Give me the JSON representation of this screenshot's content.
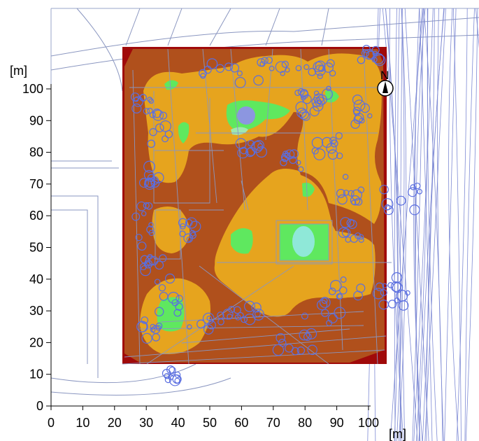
{
  "map": {
    "x_axis": {
      "unit": "[m]",
      "ticks": [
        "0",
        "10",
        "20",
        "30",
        "40",
        "50",
        "60",
        "70",
        "80",
        "90",
        "100"
      ]
    },
    "y_axis": {
      "unit": "[m]",
      "ticks": [
        "0",
        "10",
        "20",
        "30",
        "40",
        "50",
        "60",
        "70",
        "80",
        "90",
        "100"
      ]
    },
    "north_label": "N",
    "colors": {
      "dark_red": "#a00a0a",
      "brown": "#b0501c",
      "orange": "#e6a41e",
      "green": "#5fe85f",
      "light_cyan": "#8fe8d8",
      "tree_blue": "#5a6ee0",
      "line_gray": "#8a96c0"
    }
  }
}
